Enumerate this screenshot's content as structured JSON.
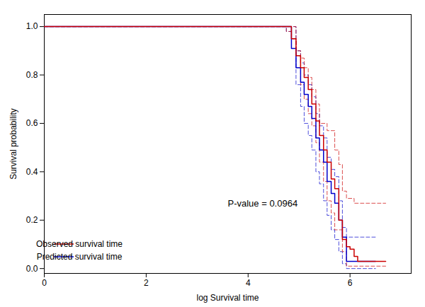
{
  "chart_data": {
    "type": "line",
    "xlabel": "log Survival time",
    "ylabel": "Survival probability",
    "annotations": [
      "P-value = 0.0964"
    ],
    "xlim": [
      0,
      7.2
    ],
    "ylim": [
      -0.02,
      1.05
    ],
    "xticks": [
      0,
      2,
      4,
      6
    ],
    "yticks": [
      {
        "value": 0.0,
        "label": "0.0"
      },
      0.2,
      0.4,
      0.6,
      0.8,
      {
        "value": 1.0,
        "label": "1.0"
      }
    ],
    "grid": false,
    "legend": "lower left",
    "series": [
      {
        "color": "#0000cc",
        "line_style": "dashed",
        "x": [
          0,
          4.75,
          4.75,
          4.85,
          4.85,
          4.94,
          4.94,
          5.03,
          5.03,
          5.1,
          5.1,
          5.18,
          5.18,
          5.25,
          5.25,
          5.33,
          5.33,
          5.4,
          5.4,
          5.48,
          5.48,
          5.55,
          5.55,
          5.63,
          5.63,
          5.7,
          5.7,
          5.78,
          5.78,
          5.85,
          5.85,
          5.93,
          5.93,
          6.0,
          6.0,
          6.23,
          6.23,
          6.5,
          6.5
        ],
        "values": [
          1.0,
          1.0,
          0.98,
          0.98,
          0.95,
          0.95,
          0.9,
          0.9,
          0.85,
          0.85,
          0.8,
          0.8,
          0.76,
          0.76,
          0.71,
          0.71,
          0.64,
          0.64,
          0.59,
          0.59,
          0.54,
          0.54,
          0.46,
          0.46,
          0.41,
          0.41,
          0.38,
          0.38,
          0.28,
          0.28,
          0.17,
          0.17,
          0.13,
          0.13,
          0.13,
          0.13,
          0.13,
          0.13,
          0.13
        ]
      },
      {
        "color": "#0000cc",
        "line_style": "dashed",
        "x": [
          0,
          4.94,
          4.94,
          5.03,
          5.03,
          5.1,
          5.1,
          5.18,
          5.18,
          5.25,
          5.25,
          5.33,
          5.33,
          5.4,
          5.4,
          5.48,
          5.48,
          5.55,
          5.55,
          5.63,
          5.63,
          5.7,
          5.7,
          5.78,
          5.78,
          5.85,
          5.85,
          5.93,
          5.93,
          6.08,
          6.08,
          6.23,
          6.23,
          6.5,
          6.5
        ],
        "values": [
          1.0,
          1.0,
          0.76,
          0.76,
          0.67,
          0.67,
          0.6,
          0.6,
          0.55,
          0.55,
          0.49,
          0.49,
          0.4,
          0.4,
          0.35,
          0.35,
          0.28,
          0.28,
          0.22,
          0.22,
          0.16,
          0.16,
          0.12,
          0.12,
          0.07,
          0.07,
          0.02,
          0.02,
          0.0,
          0.0,
          0.0,
          0.0,
          0.0,
          0.0,
          0.0
        ]
      },
      {
        "color": "#cc0000",
        "line_style": "dashed",
        "x": [
          0,
          4.75,
          4.75,
          4.85,
          4.85,
          4.94,
          4.94,
          5.03,
          5.03,
          5.1,
          5.1,
          5.18,
          5.18,
          5.25,
          5.25,
          5.33,
          5.33,
          5.4,
          5.4,
          5.55,
          5.55,
          5.7,
          5.7,
          5.78,
          5.78,
          5.85,
          5.85,
          5.93,
          5.93,
          6.08,
          6.08,
          6.15,
          6.15,
          6.7,
          6.7
        ],
        "values": [
          1.0,
          1.0,
          0.98,
          0.98,
          0.95,
          0.95,
          0.9,
          0.9,
          0.87,
          0.87,
          0.83,
          0.83,
          0.79,
          0.79,
          0.74,
          0.74,
          0.68,
          0.68,
          0.6,
          0.6,
          0.57,
          0.57,
          0.49,
          0.49,
          0.43,
          0.43,
          0.32,
          0.32,
          0.29,
          0.29,
          0.27,
          0.27,
          0.27,
          0.27,
          0.27
        ]
      },
      {
        "color": "#cc0000",
        "line_style": "dashed",
        "x": [
          0,
          4.94,
          4.94,
          5.03,
          5.03,
          5.1,
          5.1,
          5.18,
          5.18,
          5.25,
          5.25,
          5.33,
          5.33,
          5.4,
          5.4,
          5.48,
          5.48,
          5.55,
          5.55,
          5.63,
          5.63,
          5.7,
          5.7,
          5.85,
          5.85,
          5.93,
          5.93,
          6.23,
          6.23,
          6.5,
          6.5,
          6.7,
          6.7
        ],
        "values": [
          1.0,
          1.0,
          0.88,
          0.88,
          0.76,
          0.76,
          0.7,
          0.7,
          0.64,
          0.64,
          0.59,
          0.59,
          0.52,
          0.52,
          0.44,
          0.44,
          0.36,
          0.36,
          0.28,
          0.28,
          0.23,
          0.23,
          0.16,
          0.16,
          0.07,
          0.07,
          0.01,
          0.01,
          0.01,
          0.01,
          0.01,
          0.01,
          0.01
        ]
      },
      {
        "name": "Predicted survival time",
        "color": "#0000cc",
        "line_style": "solid",
        "x": [
          0,
          4.85,
          4.85,
          4.94,
          4.94,
          5.03,
          5.03,
          5.1,
          5.1,
          5.18,
          5.18,
          5.25,
          5.25,
          5.33,
          5.33,
          5.4,
          5.4,
          5.48,
          5.48,
          5.55,
          5.55,
          5.63,
          5.63,
          5.7,
          5.7,
          5.78,
          5.78,
          5.85,
          5.85,
          5.93,
          5.93,
          6.0,
          6.0,
          6.08,
          6.08,
          6.23,
          6.23,
          6.5,
          6.5
        ],
        "values": [
          1.0,
          1.0,
          0.91,
          0.91,
          0.83,
          0.83,
          0.77,
          0.77,
          0.72,
          0.72,
          0.67,
          0.67,
          0.62,
          0.62,
          0.54,
          0.54,
          0.49,
          0.49,
          0.44,
          0.44,
          0.36,
          0.36,
          0.31,
          0.31,
          0.27,
          0.27,
          0.2,
          0.2,
          0.13,
          0.13,
          0.03,
          0.03,
          0.03,
          0.03,
          0.03,
          0.03,
          0.03,
          0.03,
          0.03
        ]
      },
      {
        "name": "Observed survival time",
        "color": "#cc0000",
        "line_style": "solid",
        "x": [
          0,
          4.85,
          4.85,
          4.94,
          4.94,
          5.03,
          5.03,
          5.1,
          5.1,
          5.18,
          5.18,
          5.25,
          5.25,
          5.33,
          5.33,
          5.4,
          5.4,
          5.48,
          5.48,
          5.55,
          5.55,
          5.63,
          5.63,
          5.7,
          5.7,
          5.78,
          5.78,
          5.85,
          5.85,
          5.93,
          5.93,
          6.0,
          6.0,
          6.08,
          6.08,
          6.15,
          6.15,
          6.23,
          6.23,
          6.5,
          6.5,
          6.7,
          6.7
        ],
        "values": [
          1.0,
          1.0,
          0.95,
          0.95,
          0.88,
          0.88,
          0.83,
          0.83,
          0.79,
          0.79,
          0.74,
          0.74,
          0.68,
          0.68,
          0.61,
          0.61,
          0.55,
          0.55,
          0.49,
          0.49,
          0.44,
          0.44,
          0.37,
          0.37,
          0.33,
          0.33,
          0.2,
          0.2,
          0.12,
          0.12,
          0.09,
          0.09,
          0.08,
          0.08,
          0.05,
          0.05,
          0.03,
          0.03,
          0.03,
          0.03,
          0.03,
          0.03,
          0.03
        ]
      }
    ]
  }
}
